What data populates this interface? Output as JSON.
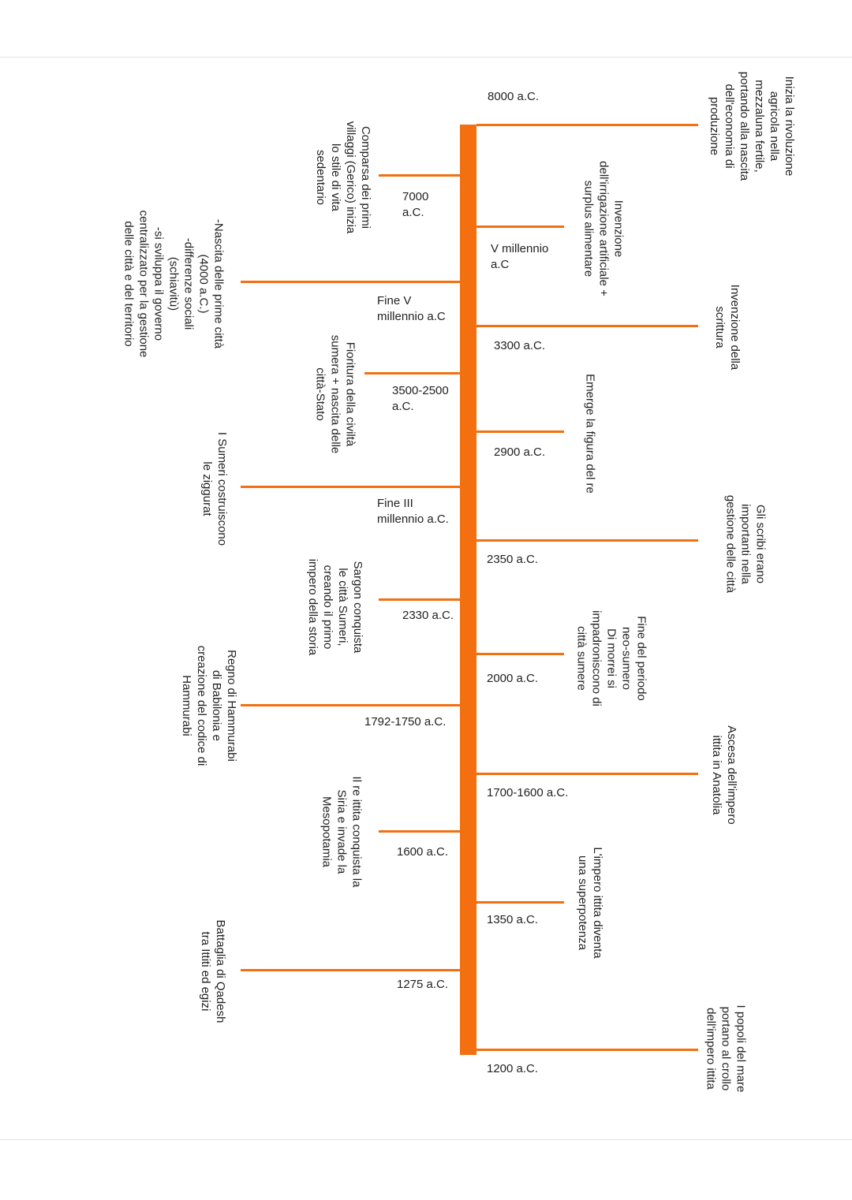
{
  "accent_color": "#f36f0f",
  "right_events": [
    {
      "date": "8000 a.C.",
      "text": "Inizia la rivoluzione\nagricola nella\nmezzaluna fertile,\nportando alla nascita\ndell'economia di\nproduzione"
    },
    {
      "date": "V millennio\na.C",
      "text": "Invenzione\ndell'irrigazione artificiale +\nsurplus alimentare"
    },
    {
      "date": "3300 a.C.",
      "text": "Invenzione della\nscrittura"
    },
    {
      "date": "2900 a.C.",
      "text": "Emerge la figura del re"
    },
    {
      "date": "2350 a.C.",
      "text": "Gli scribi erano\nimportanti nella\ngestione delle città"
    },
    {
      "date": "2000 a.C.",
      "text": "Fine del periodo\nneo-sumero\nDi morrei si\nimpadroniscono di\ncittà sumere"
    },
    {
      "date": "1700-1600 a.C.",
      "text": "Ascesa dell'impero\nittita in Anatolia"
    },
    {
      "date": "1350 a.C.",
      "text": "L'impero ittita diventa\nuna superpotenza"
    },
    {
      "date": "1200 a.C.",
      "text": "I popoli del mare\nportano al crollo\ndell'impero ittita"
    }
  ],
  "left_events": [
    {
      "date": "7000\na.C.",
      "text": "Comparsa dei primi\nvillaggi (Gerico) inizia\nlo stile di vita\nsedentario"
    },
    {
      "date": "Fine V\nmillennio a.C",
      "text": "-Nascita delle prime città\n(4000 a.C.)\n-differenze sociali\n(schiavitù)\n-si sviluppa il governo\ncentralizzato per la gestione\ndelle città e del territorio"
    },
    {
      "date": "3500-2500\na.C.",
      "text": "Fioritura della civiltà\nsumera + nascita delle\ncittà-Stato"
    },
    {
      "date": "Fine III\nmillennio a.C.",
      "text": "I Sumeri costruiscono\nle ziggurat"
    },
    {
      "date": "2330 a.C.",
      "text": "Sargon conquista\nle città Sumeri,\ncreando il primo\nimpero della storia"
    },
    {
      "date": "1792-1750 a.C.",
      "text": "Regno di Hammurabi\ndi Babilonia e\ncreazione del codice di\nHammurabi"
    },
    {
      "date": "1600 a.C.",
      "text": "Il re ittita conquista la\nSiria e invade la\nMesopotamia"
    },
    {
      "date": "1275 a.C.",
      "text": "Battaglia di Qadesh\ntra Ittiti ed egizi"
    }
  ]
}
